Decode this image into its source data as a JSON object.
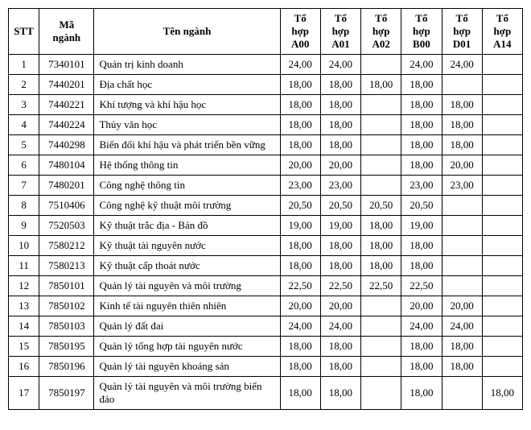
{
  "columns": [
    "STT",
    "Mã ngành",
    "Tên ngành",
    "Tổ hợp A00",
    "Tổ hợp A01",
    "Tổ hợp A02",
    "Tổ hợp B00",
    "Tổ hợp D01",
    "Tổ hợp A14"
  ],
  "rows": [
    {
      "stt": "1",
      "code": "7340101",
      "name": "Quản trị kinh doanh",
      "a00": "24,00",
      "a01": "24,00",
      "a02": "",
      "b00": "24,00",
      "d01": "24,00",
      "a14": ""
    },
    {
      "stt": "2",
      "code": "7440201",
      "name": "Địa chất học",
      "a00": "18,00",
      "a01": "18,00",
      "a02": "18,00",
      "b00": "18,00",
      "d01": "",
      "a14": ""
    },
    {
      "stt": "3",
      "code": "7440221",
      "name": "Khí tượng và khí hậu học",
      "a00": "18,00",
      "a01": "18,00",
      "a02": "",
      "b00": "18,00",
      "d01": "18,00",
      "a14": ""
    },
    {
      "stt": "4",
      "code": "7440224",
      "name": "Thủy văn học",
      "a00": "18,00",
      "a01": "18,00",
      "a02": "",
      "b00": "18,00",
      "d01": "18,00",
      "a14": ""
    },
    {
      "stt": "5",
      "code": "7440298",
      "name": "Biến đổi khí hậu và phát triển bền vững",
      "a00": "18,00",
      "a01": "18,00",
      "a02": "",
      "b00": "18,00",
      "d01": "18,00",
      "a14": ""
    },
    {
      "stt": "6",
      "code": "7480104",
      "name": "Hệ thống thông tin",
      "a00": "20,00",
      "a01": "20,00",
      "a02": "",
      "b00": "18,00",
      "d01": "20,00",
      "a14": ""
    },
    {
      "stt": "7",
      "code": "7480201",
      "name": "Công nghệ thông tin",
      "a00": "23,00",
      "a01": "23,00",
      "a02": "",
      "b00": "23,00",
      "d01": "23,00",
      "a14": ""
    },
    {
      "stt": "8",
      "code": "7510406",
      "name": "Công nghệ kỹ thuật môi trường",
      "a00": "20,50",
      "a01": "20,50",
      "a02": "20,50",
      "b00": "20,50",
      "d01": "",
      "a14": ""
    },
    {
      "stt": "9",
      "code": "7520503",
      "name": "Kỹ thuật trắc địa - Bản đồ",
      "a00": "19,00",
      "a01": "19,00",
      "a02": "18,00",
      "b00": "19,00",
      "d01": "",
      "a14": ""
    },
    {
      "stt": "10",
      "code": "7580212",
      "name": "Kỹ thuật tài nguyên nước",
      "a00": "18,00",
      "a01": "18,00",
      "a02": "18,00",
      "b00": "18,00",
      "d01": "",
      "a14": ""
    },
    {
      "stt": "11",
      "code": "7580213",
      "name": "Kỹ thuật cấp thoát nước",
      "a00": "18,00",
      "a01": "18,00",
      "a02": "18,00",
      "b00": "18,00",
      "d01": "",
      "a14": ""
    },
    {
      "stt": "12",
      "code": "7850101",
      "name": "Quản lý tài nguyên và môi trường",
      "a00": "22,50",
      "a01": "22,50",
      "a02": "22,50",
      "b00": "22,50",
      "d01": "",
      "a14": ""
    },
    {
      "stt": "13",
      "code": "7850102",
      "name": "Kinh tế tài nguyên thiên nhiên",
      "a00": "20,00",
      "a01": "20,00",
      "a02": "",
      "b00": "20,00",
      "d01": "20,00",
      "a14": ""
    },
    {
      "stt": "14",
      "code": "7850103",
      "name": "Quản lý đất đai",
      "a00": "24,00",
      "a01": "24,00",
      "a02": "",
      "b00": "24,00",
      "d01": "24,00",
      "a14": ""
    },
    {
      "stt": "15",
      "code": "7850195",
      "name": "Quản lý tổng hợp tài nguyên nước",
      "a00": "18,00",
      "a01": "18,00",
      "a02": "",
      "b00": "18,00",
      "d01": "18,00",
      "a14": ""
    },
    {
      "stt": "16",
      "code": "7850196",
      "name": "Quản lý tài nguyên khoáng sản",
      "a00": "18,00",
      "a01": "18,00",
      "a02": "",
      "b00": "18,00",
      "d01": "18,00",
      "a14": ""
    },
    {
      "stt": "17",
      "code": "7850197",
      "name": "Quản lý tài nguyên và môi trường biển đảo",
      "a00": "18,00",
      "a01": "18,00",
      "a02": "",
      "b00": "18,00",
      "d01": "",
      "a14": "18,00"
    }
  ]
}
